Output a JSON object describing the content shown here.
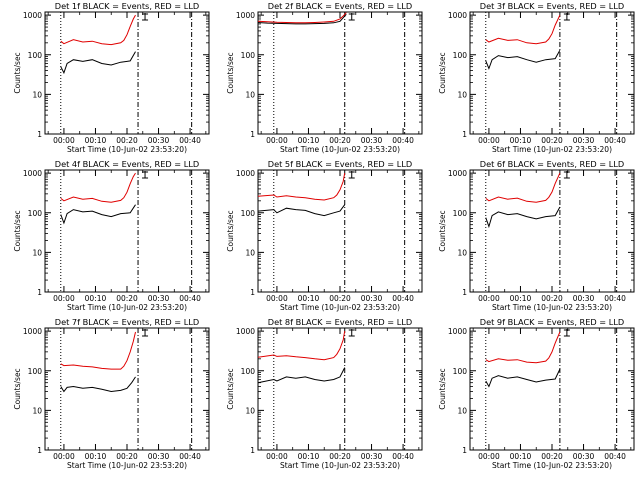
{
  "chart_data": [
    {
      "type": "line",
      "title": "Det 1f BLACK = Events, RED = LLD",
      "xlabel": "Start Time (10-Jun-02 23:53:20)",
      "ylabel": "Counts/sec",
      "x_ticks": [
        "00:00",
        "00:10",
        "00:20",
        "00:30",
        "00:40"
      ],
      "y_ticks": [
        "1",
        "10",
        "100",
        "1000"
      ],
      "ylim": [
        1,
        1200
      ],
      "xlim_minutes": [
        -6,
        46
      ],
      "vlines": [
        {
          "t": -1,
          "style": "dotted"
        },
        {
          "t": 23.5,
          "style": "dashdot"
        },
        {
          "t": 40.5,
          "style": "dashdot"
        }
      ],
      "series": [
        {
          "name": "Events",
          "color": "#000000",
          "times": [
            -1,
            0,
            1,
            3,
            6,
            9,
            12,
            15,
            18,
            21,
            22.7
          ],
          "values": [
            50,
            35,
            60,
            75,
            68,
            75,
            60,
            55,
            65,
            70,
            120
          ]
        },
        {
          "name": "LLD",
          "color": "#e00000",
          "times": [
            -1,
            0,
            3,
            6,
            9,
            12,
            15,
            18,
            19,
            20,
            21,
            22,
            22.7
          ],
          "values": [
            220,
            190,
            240,
            210,
            220,
            190,
            180,
            200,
            230,
            320,
            520,
            800,
            1000
          ]
        }
      ]
    },
    {
      "type": "line",
      "title": "Det 2f BLACK = Events, RED = LLD",
      "xlabel": "Start Time (10-Jun-02 23:53:20)",
      "ylabel": "Counts/sec",
      "x_ticks": [
        "00:00",
        "00:10",
        "00:20",
        "00:30",
        "00:40"
      ],
      "y_ticks": [
        "1",
        "10",
        "100",
        "1000"
      ],
      "ylim": [
        1,
        1200
      ],
      "xlim_minutes": [
        -6,
        46
      ],
      "vlines": [
        {
          "t": -1,
          "style": "dotted"
        },
        {
          "t": 21.5,
          "style": "dashdot"
        },
        {
          "t": 40.5,
          "style": "dashdot"
        }
      ],
      "series": [
        {
          "name": "Events",
          "color": "#000000",
          "times": [
            -6,
            -3,
            0,
            3,
            6,
            9,
            12,
            15,
            18,
            20,
            22
          ],
          "values": [
            650,
            630,
            620,
            610,
            600,
            600,
            610,
            620,
            640,
            700,
            1050
          ]
        },
        {
          "name": "LLD",
          "color": "#e00000",
          "times": [
            -6,
            -3,
            0,
            3,
            6,
            9,
            12,
            15,
            18,
            20,
            21,
            22
          ],
          "values": [
            700,
            680,
            660,
            650,
            640,
            640,
            650,
            670,
            700,
            800,
            950,
            1150
          ]
        }
      ]
    },
    {
      "type": "line",
      "title": "Det 3f BLACK = Events, RED = LLD",
      "xlabel": "Start Time (10-Jun-02 23:53:20)",
      "ylabel": "Counts/sec",
      "x_ticks": [
        "00:00",
        "00:10",
        "00:20",
        "00:30",
        "00:40"
      ],
      "y_ticks": [
        "1",
        "10",
        "100",
        "1000"
      ],
      "ylim": [
        1,
        1200
      ],
      "xlim_minutes": [
        -6,
        46
      ],
      "vlines": [
        {
          "t": -1,
          "style": "dotted"
        },
        {
          "t": 22.5,
          "style": "dashdot"
        },
        {
          "t": 40.5,
          "style": "dashdot"
        }
      ],
      "series": [
        {
          "name": "Events",
          "color": "#000000",
          "times": [
            -1,
            0,
            1,
            3,
            6,
            9,
            12,
            15,
            18,
            21,
            22.5
          ],
          "values": [
            70,
            45,
            75,
            95,
            85,
            90,
            75,
            65,
            75,
            80,
            130
          ]
        },
        {
          "name": "LLD",
          "color": "#e00000",
          "times": [
            -1,
            0,
            3,
            6,
            9,
            12,
            15,
            18,
            19,
            20,
            21,
            22.5
          ],
          "values": [
            240,
            210,
            260,
            230,
            240,
            200,
            190,
            210,
            250,
            340,
            560,
            1000
          ]
        }
      ]
    },
    {
      "type": "line",
      "title": "Det 4f BLACK = Events, RED = LLD",
      "xlabel": "Start Time (10-Jun-02 23:53:20)",
      "ylabel": "Counts/sec",
      "x_ticks": [
        "00:00",
        "00:10",
        "00:20",
        "00:30",
        "00:40"
      ],
      "y_ticks": [
        "1",
        "10",
        "100",
        "1000"
      ],
      "ylim": [
        1,
        1200
      ],
      "xlim_minutes": [
        -6,
        46
      ],
      "vlines": [
        {
          "t": -1,
          "style": "dotted"
        },
        {
          "t": 23.5,
          "style": "dashdot"
        },
        {
          "t": 40.5,
          "style": "dashdot"
        }
      ],
      "series": [
        {
          "name": "Events",
          "color": "#000000",
          "times": [
            -1,
            0,
            1,
            3,
            6,
            9,
            12,
            15,
            18,
            21,
            22.7
          ],
          "values": [
            90,
            55,
            95,
            120,
            105,
            110,
            90,
            80,
            95,
            100,
            160
          ]
        },
        {
          "name": "LLD",
          "color": "#e00000",
          "times": [
            -1,
            0,
            3,
            6,
            9,
            12,
            15,
            18,
            19,
            20,
            21,
            22,
            22.7
          ],
          "values": [
            230,
            200,
            250,
            220,
            230,
            195,
            185,
            205,
            240,
            330,
            540,
            820,
            1000
          ]
        }
      ]
    },
    {
      "type": "line",
      "title": "Det 5f BLACK = Events, RED = LLD",
      "xlabel": "Start Time (10-Jun-02 23:53:20)",
      "ylabel": "Counts/sec",
      "x_ticks": [
        "00:00",
        "00:10",
        "00:20",
        "00:30",
        "00:40"
      ],
      "y_ticks": [
        "1",
        "10",
        "100",
        "1000"
      ],
      "ylim": [
        1,
        1200
      ],
      "xlim_minutes": [
        -6,
        46
      ],
      "vlines": [
        {
          "t": -1,
          "style": "dotted"
        },
        {
          "t": 21.5,
          "style": "dashdot"
        },
        {
          "t": 40.5,
          "style": "dashdot"
        }
      ],
      "series": [
        {
          "name": "Events",
          "color": "#000000",
          "times": [
            -6,
            -1,
            0,
            3,
            6,
            9,
            12,
            15,
            18,
            20,
            21.5
          ],
          "values": [
            110,
            120,
            100,
            130,
            120,
            115,
            95,
            85,
            100,
            110,
            160
          ]
        },
        {
          "name": "LLD",
          "color": "#e00000",
          "times": [
            -6,
            -1,
            0,
            3,
            6,
            9,
            12,
            15,
            18,
            19,
            20,
            21,
            21.5
          ],
          "values": [
            260,
            280,
            250,
            270,
            250,
            240,
            220,
            210,
            240,
            280,
            380,
            620,
            1000
          ]
        }
      ]
    },
    {
      "type": "line",
      "title": "Det 6f BLACK = Events, RED = LLD",
      "xlabel": "Start Time (10-Jun-02 23:53:20)",
      "ylabel": "Counts/sec",
      "x_ticks": [
        "00:00",
        "00:10",
        "00:20",
        "00:30",
        "00:40"
      ],
      "y_ticks": [
        "1",
        "10",
        "100",
        "1000"
      ],
      "ylim": [
        1,
        1200
      ],
      "xlim_minutes": [
        -6,
        46
      ],
      "vlines": [
        {
          "t": -1,
          "style": "dotted"
        },
        {
          "t": 22.5,
          "style": "dashdot"
        },
        {
          "t": 40.5,
          "style": "dashdot"
        }
      ],
      "series": [
        {
          "name": "Events",
          "color": "#000000",
          "times": [
            -1,
            0,
            1,
            3,
            6,
            9,
            12,
            15,
            18,
            21,
            22.5
          ],
          "values": [
            75,
            45,
            85,
            105,
            90,
            95,
            80,
            70,
            80,
            85,
            140
          ]
        },
        {
          "name": "LLD",
          "color": "#e00000",
          "times": [
            -1,
            0,
            3,
            6,
            9,
            12,
            15,
            18,
            19,
            20,
            21,
            22.5
          ],
          "values": [
            230,
            200,
            250,
            220,
            235,
            195,
            185,
            205,
            245,
            335,
            550,
            1000
          ]
        }
      ]
    },
    {
      "type": "line",
      "title": "Det 7f BLACK = Events, RED = LLD",
      "xlabel": "Start Time (10-Jun-02 23:53:20)",
      "ylabel": "Counts/sec",
      "x_ticks": [
        "00:00",
        "00:10",
        "00:20",
        "00:30",
        "00:40"
      ],
      "y_ticks": [
        "1",
        "10",
        "100",
        "1000"
      ],
      "ylim": [
        1,
        1200
      ],
      "xlim_minutes": [
        -6,
        46
      ],
      "vlines": [
        {
          "t": -1,
          "style": "dotted"
        },
        {
          "t": 23.5,
          "style": "dashdot"
        },
        {
          "t": 40.5,
          "style": "dashdot"
        }
      ],
      "series": [
        {
          "name": "Events",
          "color": "#000000",
          "times": [
            -1,
            0,
            1,
            3,
            6,
            9,
            12,
            15,
            18,
            20,
            21.5,
            22.7
          ],
          "values": [
            40,
            30,
            38,
            40,
            36,
            38,
            34,
            30,
            32,
            36,
            50,
            70
          ]
        },
        {
          "name": "LLD",
          "color": "#e00000",
          "times": [
            -1,
            0,
            3,
            6,
            9,
            12,
            15,
            18,
            19,
            20,
            21,
            22,
            22.7
          ],
          "values": [
            150,
            135,
            140,
            130,
            125,
            115,
            110,
            110,
            130,
            180,
            300,
            550,
            950
          ]
        }
      ]
    },
    {
      "type": "line",
      "title": "Det 8f BLACK = Events, RED = LLD",
      "xlabel": "Start Time (10-Jun-02 23:53:20)",
      "ylabel": "Counts/sec",
      "x_ticks": [
        "00:00",
        "00:10",
        "00:20",
        "00:30",
        "00:40"
      ],
      "y_ticks": [
        "1",
        "10",
        "100",
        "1000"
      ],
      "ylim": [
        1,
        1200
      ],
      "xlim_minutes": [
        -6,
        46
      ],
      "vlines": [
        {
          "t": -1,
          "style": "dotted"
        },
        {
          "t": 21.5,
          "style": "dashdot"
        },
        {
          "t": 40.5,
          "style": "dashdot"
        }
      ],
      "series": [
        {
          "name": "Events",
          "color": "#000000",
          "times": [
            -6,
            -1,
            0,
            3,
            6,
            9,
            12,
            15,
            18,
            20,
            21.5
          ],
          "values": [
            50,
            60,
            55,
            70,
            65,
            70,
            60,
            55,
            60,
            70,
            120
          ]
        },
        {
          "name": "LLD",
          "color": "#e00000",
          "times": [
            -6,
            -1,
            0,
            3,
            6,
            9,
            12,
            15,
            18,
            19,
            20,
            21,
            21.5
          ],
          "values": [
            220,
            250,
            230,
            240,
            225,
            215,
            200,
            190,
            215,
            260,
            360,
            600,
            1000
          ]
        }
      ]
    },
    {
      "type": "line",
      "title": "Det 9f BLACK = Events, RED = LLD",
      "xlabel": "Start Time (10-Jun-02 23:53:20)",
      "ylabel": "Counts/sec",
      "x_ticks": [
        "00:00",
        "00:10",
        "00:20",
        "00:30",
        "00:40"
      ],
      "y_ticks": [
        "1",
        "10",
        "100",
        "1000"
      ],
      "ylim": [
        1,
        1200
      ],
      "xlim_minutes": [
        -6,
        46
      ],
      "vlines": [
        {
          "t": -1,
          "style": "dotted"
        },
        {
          "t": 22.5,
          "style": "dashdot"
        },
        {
          "t": 40.5,
          "style": "dashdot"
        }
      ],
      "series": [
        {
          "name": "Events",
          "color": "#000000",
          "times": [
            -1,
            0,
            1,
            3,
            6,
            9,
            12,
            15,
            18,
            21,
            22.5
          ],
          "values": [
            55,
            40,
            65,
            75,
            65,
            70,
            60,
            52,
            58,
            62,
            110
          ]
        },
        {
          "name": "LLD",
          "color": "#e00000",
          "times": [
            -1,
            0,
            3,
            6,
            9,
            12,
            15,
            18,
            19,
            20,
            21,
            22.5
          ],
          "values": [
            190,
            170,
            200,
            185,
            190,
            165,
            160,
            175,
            210,
            300,
            500,
            950
          ]
        }
      ]
    }
  ]
}
